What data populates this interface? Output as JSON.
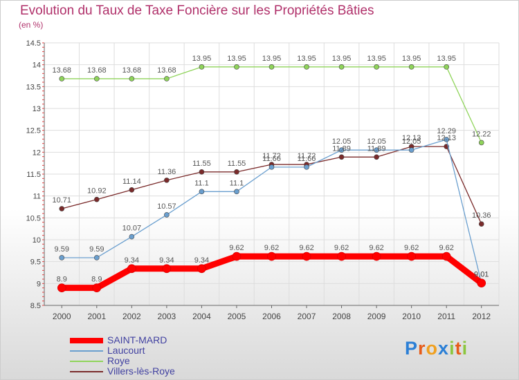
{
  "title": "Evolution du Taux de Taxe Foncière sur les Propriétés Bâties",
  "subtitle": "(en %)",
  "brand": {
    "letters": [
      "P",
      "r",
      "o",
      "x",
      "i",
      "t",
      "i"
    ],
    "colors": [
      "#2b7fd6",
      "#e65c1a",
      "#f0a020",
      "#2b7fd6",
      "#8cc63f",
      "#e65c1a",
      "#8cc63f"
    ]
  },
  "chart_data": {
    "type": "line",
    "x": [
      "2000",
      "2001",
      "2002",
      "2003",
      "2004",
      "2005",
      "2006",
      "2007",
      "2008",
      "2009",
      "2010",
      "2011",
      "2012"
    ],
    "ylim": [
      8.5,
      14.5
    ],
    "yticks": [
      "8.5",
      "9",
      "9.5",
      "10",
      "10.5",
      "11",
      "11.5",
      "12",
      "12.5",
      "13",
      "13.5",
      "14",
      "14.5"
    ],
    "grid": true,
    "legend_position": "bottom-left",
    "series": [
      {
        "name": "SAINT-MARD",
        "color": "#ff0000",
        "width": 9,
        "values": [
          8.9,
          8.9,
          9.34,
          9.34,
          9.34,
          9.62,
          9.62,
          9.62,
          9.62,
          9.62,
          9.62,
          9.62,
          9.01
        ],
        "labels": [
          "8.9",
          "8.9",
          "9.34",
          "9.34",
          "9.34",
          "9.62",
          "9.62",
          "9.62",
          "9.62",
          "9.62",
          "9.62",
          "9.62",
          "9.01"
        ]
      },
      {
        "name": "Laucourt",
        "color": "#6a9fcf",
        "width": 1.3,
        "values": [
          9.59,
          9.59,
          10.07,
          10.57,
          11.1,
          11.1,
          11.66,
          11.66,
          12.05,
          12.05,
          12.05,
          12.29,
          9.01
        ],
        "labels": [
          "9.59",
          "9.59",
          "10.07",
          "10.57",
          "11.1",
          "11.1",
          "11.66",
          "11.66",
          "12.05",
          "12.05",
          "12.05",
          "12.29",
          "9.01"
        ]
      },
      {
        "name": "Roye",
        "color": "#8fd45a",
        "width": 1.3,
        "values": [
          13.68,
          13.68,
          13.68,
          13.68,
          13.95,
          13.95,
          13.95,
          13.95,
          13.95,
          13.95,
          13.95,
          13.95,
          12.22
        ],
        "labels": [
          "13.68",
          "13.68",
          "13.68",
          "13.68",
          "13.95",
          "13.95",
          "13.95",
          "13.95",
          "13.95",
          "13.95",
          "13.95",
          "13.95",
          "12.22"
        ]
      },
      {
        "name": "Villers-lès-Roye",
        "color": "#7a2a2a",
        "width": 1.3,
        "values": [
          10.71,
          10.92,
          11.14,
          11.36,
          11.55,
          11.55,
          11.72,
          11.72,
          11.89,
          11.89,
          12.13,
          12.13,
          10.36
        ],
        "labels": [
          "10.71",
          "10.92",
          "11.14",
          "11.36",
          "11.55",
          "11.55",
          "11.72",
          "11.72",
          "11.89",
          "11.89",
          "12.13",
          "12.13",
          "10.36"
        ]
      }
    ]
  }
}
